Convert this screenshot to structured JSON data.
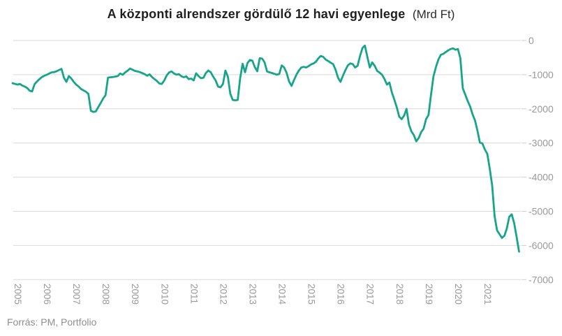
{
  "header": {
    "title": "A központi alrendszer gördülő 12 havi egyenlege",
    "unit_suffix": "(Mrd Ft)"
  },
  "footer": {
    "source": "Forrás: PM, Portfolio"
  },
  "chart_data": {
    "type": "line",
    "title": "A központi alrendszer gördülő 12 havi egyenlege",
    "unit": "Mrd Ft",
    "legend": "none",
    "grid": "horizontal",
    "ylim": [
      -7000,
      0
    ],
    "y_ticks": [
      0,
      -1000,
      -2000,
      -3000,
      -4000,
      -5000,
      -6000,
      -7000
    ],
    "x_ticks": [
      2005,
      2006,
      2007,
      2008,
      2009,
      2010,
      2011,
      2012,
      2013,
      2014,
      2015,
      2016,
      2017,
      2018,
      2019,
      2020,
      2021
    ],
    "x_axis_label_rotation": 90,
    "colors": {
      "line": "#17a58a",
      "grid": "#d9d9d9",
      "tick": "#cfcfcf",
      "axis_text": "#9a9a9a",
      "title_text": "#1f1f1f",
      "source_text": "#8f8f8f",
      "background": "#ffffff"
    },
    "series": [
      {
        "name": "Központi alrendszer gördülő 12 havi egyenlege (Mrd Ft)",
        "frequency": "monthly",
        "start_month": "2004-11",
        "values": [
          -1250,
          -1270,
          -1290,
          -1270,
          -1320,
          -1350,
          -1390,
          -1470,
          -1490,
          -1280,
          -1200,
          -1130,
          -1070,
          -1030,
          -1000,
          -965,
          -930,
          -925,
          -900,
          -865,
          -830,
          -1090,
          -1210,
          -1040,
          -1110,
          -1210,
          -1290,
          -1345,
          -1420,
          -1460,
          -1500,
          -1560,
          -2060,
          -2090,
          -2075,
          -1950,
          -1830,
          -1700,
          -1600,
          -1085,
          -1075,
          -1070,
          -1055,
          -1040,
          -965,
          -1005,
          -935,
          -885,
          -820,
          -855,
          -890,
          -905,
          -925,
          -955,
          -985,
          -1030,
          -990,
          -1070,
          -1130,
          -1185,
          -1260,
          -1270,
          -1170,
          -1020,
          -935,
          -905,
          -965,
          -1000,
          -985,
          -1045,
          -1075,
          -1050,
          -1130,
          -1115,
          -1170,
          -960,
          -1040,
          -1105,
          -1090,
          -950,
          -880,
          -930,
          -1060,
          -1170,
          -1350,
          -1370,
          -1270,
          -880,
          -1060,
          -1560,
          -1740,
          -1750,
          -1740,
          -1100,
          -680,
          -930,
          -660,
          -570,
          -590,
          -780,
          -900,
          -520,
          -530,
          -640,
          -905,
          -930,
          -950,
          -975,
          -1000,
          -980,
          -730,
          -790,
          -950,
          -1200,
          -1330,
          -1160,
          -1000,
          -880,
          -790,
          -770,
          -790,
          -750,
          -700,
          -670,
          -620,
          -520,
          -450,
          -480,
          -560,
          -600,
          -650,
          -690,
          -850,
          -1090,
          -1210,
          -1030,
          -870,
          -730,
          -670,
          -690,
          -790,
          -740,
          -450,
          -220,
          -150,
          -480,
          -790,
          -640,
          -740,
          -890,
          -940,
          -1000,
          -1130,
          -1290,
          -1230,
          -1520,
          -1730,
          -1950,
          -2230,
          -2300,
          -2200,
          -2000,
          -2460,
          -2660,
          -2770,
          -2950,
          -2850,
          -2680,
          -2580,
          -2300,
          -2180,
          -1600,
          -1050,
          -780,
          -560,
          -420,
          -390,
          -340,
          -290,
          -250,
          -230,
          -270,
          -250,
          -520,
          -1400,
          -1580,
          -1770,
          -1930,
          -2160,
          -2340,
          -2640,
          -2990,
          -3010,
          -3190,
          -3320,
          -3750,
          -4250,
          -5150,
          -5560,
          -5670,
          -5780,
          -5715,
          -5500,
          -5160,
          -5090,
          -5350,
          -5750,
          -6180
        ]
      }
    ]
  }
}
